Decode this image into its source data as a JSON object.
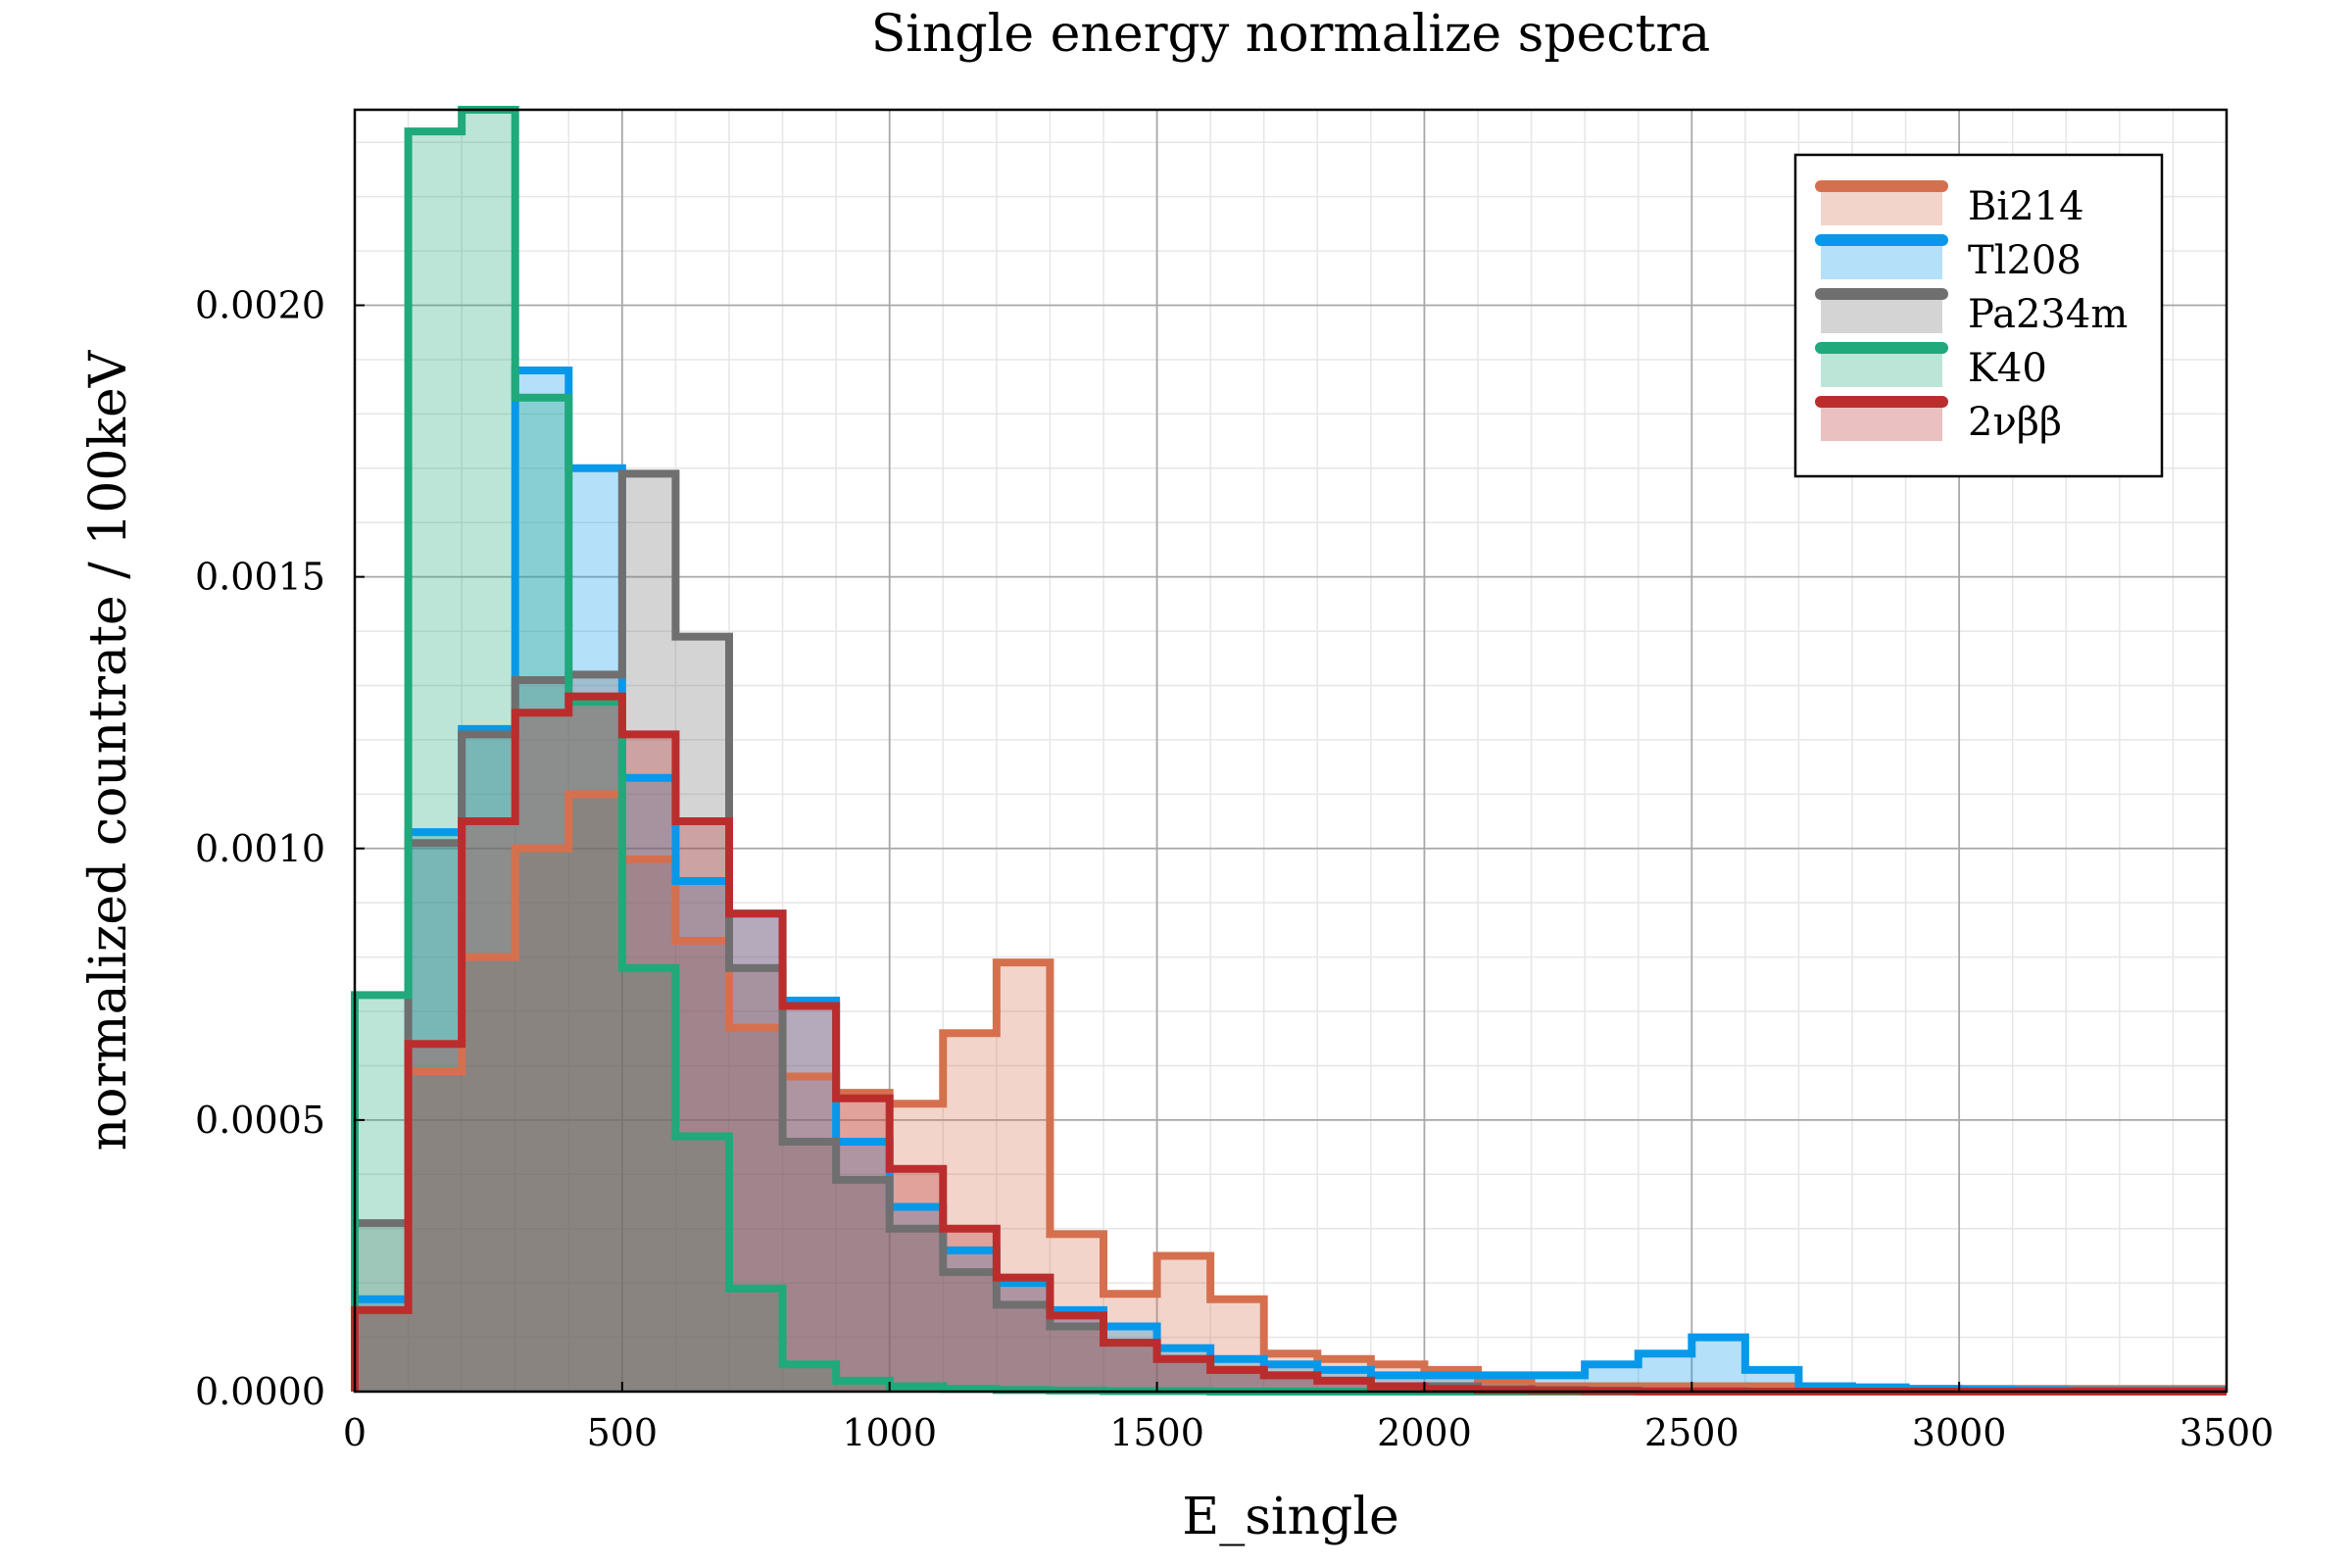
{
  "chart_data": {
    "type": "histogram",
    "title": "Single energy normalize spectra",
    "xlabel": "E_single",
    "ylabel": "normalized countrate / 100keV",
    "xlim": [
      0,
      3500
    ],
    "ylim": [
      0,
      0.00236
    ],
    "x_ticks": [
      "0",
      "500",
      "1000",
      "1500",
      "2000",
      "2500",
      "3000",
      "3500"
    ],
    "y_ticks": [
      "0.0000",
      "0.0005",
      "0.0010",
      "0.0015",
      "0.0020"
    ],
    "x_tick_values": [
      0,
      500,
      1000,
      1500,
      2000,
      2500,
      3000,
      3500
    ],
    "y_tick_values": [
      0,
      0.0005,
      0.001,
      0.0015,
      0.002
    ],
    "grid": true,
    "minor_grid": true,
    "legend_position": "top-right",
    "bin_edges": [
      0,
      100,
      200,
      300,
      400,
      500,
      600,
      700,
      800,
      900,
      1000,
      1100,
      1200,
      1300,
      1400,
      1500,
      1600,
      1700,
      1800,
      1900,
      2000,
      2100,
      2200,
      2300,
      2400,
      2500,
      2600,
      2700,
      2800,
      2900,
      3000,
      3100,
      3200,
      3300,
      3400,
      3500
    ],
    "series": [
      {
        "name": "Bi214",
        "color": "#d5704f",
        "fill": "#f2c5b6",
        "values": [
          0.00015,
          0.00059,
          0.0008,
          0.001,
          0.0011,
          0.00098,
          0.00083,
          0.00067,
          0.00058,
          0.00055,
          0.00053,
          0.00066,
          0.00079,
          0.00029,
          0.00018,
          0.00025,
          0.00017,
          7e-05,
          6e-05,
          5e-05,
          4e-05,
          2e-05,
          1e-05,
          1e-05,
          1e-05,
          1e-05,
          1e-05,
          5e-06,
          5e-06,
          5e-06,
          5e-06,
          5e-06,
          5e-06,
          5e-06,
          5e-06
        ]
      },
      {
        "name": "Tl208",
        "color": "#0898ea",
        "fill": "#b3dcf7",
        "values": [
          0.00017,
          0.00103,
          0.00122,
          0.00188,
          0.0017,
          0.00113,
          0.00094,
          0.00088,
          0.00072,
          0.00046,
          0.00034,
          0.00026,
          0.0002,
          0.00015,
          0.00012,
          8e-05,
          6e-05,
          5e-05,
          4e-05,
          3e-05,
          3e-05,
          3e-05,
          3e-05,
          5e-05,
          7e-05,
          0.0001,
          4e-05,
          1e-05,
          8e-06,
          5e-06,
          4e-06,
          3e-06,
          2e-06,
          2e-06,
          2e-06
        ]
      },
      {
        "name": "Pa234m",
        "color": "#6f6f6f",
        "fill": "#d4d4d4",
        "values": [
          0.00031,
          0.00101,
          0.00121,
          0.00131,
          0.00132,
          0.00169,
          0.00139,
          0.00078,
          0.00046,
          0.00039,
          0.0003,
          0.00022,
          0.00016,
          0.00012,
          9e-05,
          6e-05,
          4e-05,
          3e-05,
          2e-05,
          1e-05,
          1e-05,
          5e-06,
          3e-06,
          2e-06,
          1e-06,
          1e-06,
          0,
          0,
          0,
          0,
          0,
          0,
          0,
          0,
          0
        ]
      },
      {
        "name": "K40",
        "color": "#20a97a",
        "fill": "#b3e3cf",
        "values": [
          0.00073,
          0.00232,
          0.00236,
          0.00183,
          0.00127,
          0.00078,
          0.00047,
          0.00019,
          5e-05,
          2e-05,
          1e-05,
          5e-06,
          3e-06,
          2e-06,
          1e-06,
          1e-06,
          0,
          0,
          0,
          0,
          0,
          0,
          0,
          0,
          0,
          0,
          0,
          0,
          0,
          0,
          0,
          0,
          0,
          0,
          0
        ]
      },
      {
        "name": "2νββ",
        "color": "#bb2d2d",
        "fill": "#e9b9b9",
        "values": [
          0.00015,
          0.00064,
          0.00105,
          0.00125,
          0.00128,
          0.00121,
          0.00105,
          0.00088,
          0.00071,
          0.00054,
          0.00041,
          0.0003,
          0.00021,
          0.00014,
          9e-05,
          6e-05,
          4e-05,
          3e-05,
          2e-05,
          1e-05,
          5e-06,
          3e-06,
          2e-06,
          1e-06,
          0,
          0,
          0,
          0,
          0,
          0,
          0,
          0,
          0,
          0,
          0
        ]
      }
    ]
  }
}
